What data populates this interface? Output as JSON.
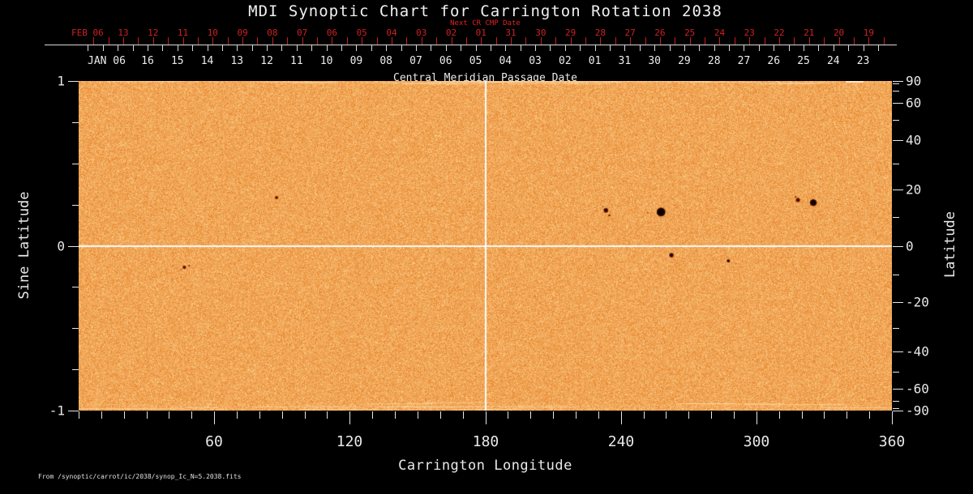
{
  "title": "MDI Synoptic Chart for Carrington Rotation 2038",
  "top_axis": {
    "next_cr_label": "Next CR CMP Date",
    "feb_month_label": "FEB 06",
    "feb_days": [
      "13",
      "12",
      "11",
      "10",
      "09",
      "08",
      "07",
      "06",
      "05",
      "04",
      "03",
      "02",
      "01",
      "31",
      "30",
      "29",
      "28",
      "27",
      "26",
      "25",
      "24",
      "23",
      "22",
      "21",
      "20",
      "19"
    ],
    "jan_month_label": "JAN 06",
    "jan_days": [
      "16",
      "15",
      "14",
      "13",
      "12",
      "11",
      "10",
      "09",
      "08",
      "07",
      "06",
      "05",
      "04",
      "03",
      "02",
      "01",
      "31",
      "30",
      "29",
      "28",
      "27",
      "26",
      "25",
      "24",
      "23"
    ],
    "cmp_label": "Central Meridian Passage Date"
  },
  "left_axis": {
    "label": "Sine Latitude",
    "tick_labels": [
      "1",
      "0",
      "-1"
    ],
    "tick_sines": [
      1,
      0,
      -1
    ]
  },
  "right_axis": {
    "label": "Latitude",
    "tick_labels": [
      "90",
      "60",
      "40",
      "20",
      "0",
      "-20",
      "-40",
      "-60",
      "-90"
    ]
  },
  "bottom_axis": {
    "label": "Carrington Longitude",
    "tick_labels": [
      "60",
      "120",
      "180",
      "240",
      "300",
      "360"
    ]
  },
  "source_note": "From  /synoptic/carrot/ic/2038/synop_Ic_N=5.2038.fits",
  "colors": {
    "background": "#000000",
    "text": "#ececec",
    "date_red": "#cf2121",
    "plot_base": "#f2a553",
    "plot_dark_grain": "#e27418",
    "plot_light_grain": "#ffd896",
    "grid_white": "#fbfbfb",
    "sunspot_black": "#0c0200",
    "sunspot_red": "#7e1e02"
  },
  "chart_data": {
    "type": "heatmap",
    "title": "MDI Synoptic Chart for Carrington Rotation 2038",
    "xlabel": "Carrington Longitude",
    "ylabel_left": "Sine Latitude",
    "ylabel_right": "Latitude",
    "xlim": [
      0,
      360
    ],
    "ylim_sine_latitude": [
      -1,
      1
    ],
    "x_tick_step_deg": 10,
    "x_major_tick_step_deg": 60,
    "right_tick_step_deg": 10,
    "left_tick_step_sine": 0.25,
    "grid_lines": {
      "vertical_longitude": 180,
      "horizontal_sine_latitude": 0
    },
    "cmp_axis": {
      "feb_start_lon": 19.74,
      "jan_start_lon": 30.51,
      "day_step_lon": 13.199
    },
    "sunspots": [
      {
        "lon": 87.6,
        "sinlat": 0.292,
        "r": 1.1,
        "core": "#3a0b00",
        "rim": "#8a2204"
      },
      {
        "lon": 46.8,
        "sinlat": -0.13,
        "r": 1.3,
        "core": "#4a0e00",
        "rim": "#962a06"
      },
      {
        "lon": 48.9,
        "sinlat": -0.122,
        "r": 1.0,
        "core": "#7a1c03",
        "rim": ""
      },
      {
        "lon": 45.4,
        "sinlat": -0.143,
        "r": 0.8,
        "core": "#962a06",
        "rim": ""
      },
      {
        "lon": 233.4,
        "sinlat": 0.215,
        "r": 2.0,
        "core": "#1c0500",
        "rim": "#7e1e02"
      },
      {
        "lon": 234.9,
        "sinlat": 0.185,
        "r": 1.2,
        "core": "#571200",
        "rim": ""
      },
      {
        "lon": 232.1,
        "sinlat": 0.238,
        "r": 0.9,
        "core": "#8a2404",
        "rim": ""
      },
      {
        "lon": 251.9,
        "sinlat": 0.2,
        "r": 0.8,
        "core": "#7a2004",
        "rim": ""
      },
      {
        "lon": 257.8,
        "sinlat": 0.205,
        "r": 4.6,
        "core": "#0c0200",
        "rim": "#5e1402"
      },
      {
        "lon": 262.4,
        "sinlat": -0.057,
        "r": 1.9,
        "core": "#120300",
        "rim": "#7a1c02"
      },
      {
        "lon": 287.6,
        "sinlat": -0.092,
        "r": 1.2,
        "core": "#1c0600",
        "rim": "#802004"
      },
      {
        "lon": 318.4,
        "sinlat": 0.278,
        "r": 1.8,
        "core": "#3c0d00",
        "rim": "#8e2606"
      },
      {
        "lon": 317.3,
        "sinlat": 0.296,
        "r": 1.0,
        "core": "#7a1c03",
        "rim": ""
      },
      {
        "lon": 325.2,
        "sinlat": 0.262,
        "r": 3.4,
        "core": "#0e0300",
        "rim": "#6a1602"
      }
    ]
  }
}
